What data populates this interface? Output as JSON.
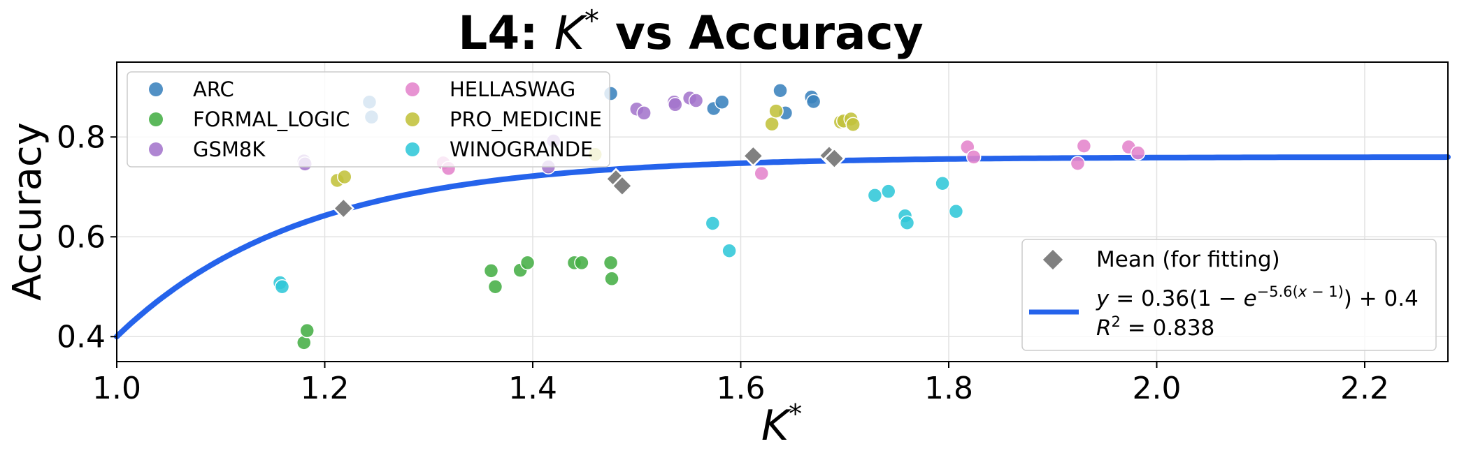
{
  "chart_data": {
    "type": "scatter",
    "title": {
      "prefix": "L4: ",
      "var": "K",
      "sup": "*",
      "suffix": " vs Accuracy"
    },
    "xlabel": {
      "var": "K",
      "sup": "*"
    },
    "ylabel": "Accuracy",
    "xlim": [
      1.0,
      2.28
    ],
    "ylim": [
      0.35,
      0.95
    ],
    "xticks": [
      1.0,
      1.2,
      1.4,
      1.6,
      1.8,
      2.0,
      2.2
    ],
    "xtick_labels": [
      "1.0",
      "1.2",
      "1.4",
      "1.6",
      "1.8",
      "2.0",
      "2.2"
    ],
    "yticks": [
      0.4,
      0.6,
      0.8
    ],
    "ytick_labels": [
      "0.4",
      "0.6",
      "0.8"
    ],
    "grid": true,
    "series": [
      {
        "name": "ARC",
        "color": "#3a82bd",
        "points": [
          [
            1.243,
            0.87
          ],
          [
            1.245,
            0.84
          ],
          [
            1.475,
            0.887
          ],
          [
            1.574,
            0.857
          ],
          [
            1.582,
            0.87
          ],
          [
            1.638,
            0.893
          ],
          [
            1.643,
            0.848
          ],
          [
            1.668,
            0.88
          ],
          [
            1.67,
            0.871
          ]
        ]
      },
      {
        "name": "FORMAL_LOGIC",
        "color": "#45ae45",
        "points": [
          [
            1.18,
            0.388
          ],
          [
            1.183,
            0.412
          ],
          [
            1.36,
            0.532
          ],
          [
            1.364,
            0.5
          ],
          [
            1.388,
            0.533
          ],
          [
            1.395,
            0.548
          ],
          [
            1.44,
            0.548
          ],
          [
            1.447,
            0.548
          ],
          [
            1.475,
            0.548
          ],
          [
            1.476,
            0.516
          ]
        ]
      },
      {
        "name": "GSM8K",
        "color": "#a475cc",
        "points": [
          [
            1.18,
            0.752
          ],
          [
            1.181,
            0.746
          ],
          [
            1.415,
            0.74
          ],
          [
            1.42,
            0.792
          ],
          [
            1.5,
            0.856
          ],
          [
            1.507,
            0.848
          ],
          [
            1.536,
            0.87
          ],
          [
            1.537,
            0.865
          ],
          [
            1.551,
            0.878
          ],
          [
            1.557,
            0.873
          ]
        ]
      },
      {
        "name": "HELLASWAG",
        "color": "#e484cc",
        "points": [
          [
            1.314,
            0.748
          ],
          [
            1.319,
            0.737
          ],
          [
            1.62,
            0.727
          ],
          [
            1.818,
            0.78
          ],
          [
            1.824,
            0.76
          ],
          [
            1.924,
            0.747
          ],
          [
            1.93,
            0.782
          ],
          [
            1.973,
            0.78
          ],
          [
            1.982,
            0.768
          ]
        ]
      },
      {
        "name": "PRO_MEDICINE",
        "color": "#c2c23b",
        "points": [
          [
            1.212,
            0.713
          ],
          [
            1.219,
            0.72
          ],
          [
            1.46,
            0.765
          ],
          [
            1.63,
            0.826
          ],
          [
            1.634,
            0.852
          ],
          [
            1.696,
            0.83
          ],
          [
            1.699,
            0.832
          ],
          [
            1.706,
            0.836
          ],
          [
            1.708,
            0.825
          ]
        ]
      },
      {
        "name": "WINOGRANDE",
        "color": "#30c7d8",
        "points": [
          [
            1.157,
            0.508
          ],
          [
            1.159,
            0.5
          ],
          [
            1.573,
            0.627
          ],
          [
            1.589,
            0.572
          ],
          [
            1.729,
            0.683
          ],
          [
            1.742,
            0.691
          ],
          [
            1.758,
            0.642
          ],
          [
            1.76,
            0.628
          ],
          [
            1.794,
            0.707
          ],
          [
            1.807,
            0.651
          ]
        ]
      }
    ],
    "means": {
      "name": "Mean (for fitting)",
      "color": "#808080",
      "points": [
        [
          1.218,
          0.657
        ],
        [
          1.48,
          0.716
        ],
        [
          1.486,
          0.702
        ],
        [
          1.612,
          0.762
        ],
        [
          1.685,
          0.763
        ],
        [
          1.69,
          0.757
        ]
      ]
    },
    "fit": {
      "a": 0.36,
      "b": 5.6,
      "c": 0.4,
      "x0": 1.0,
      "color": "#2563eb",
      "label": "y = 0.36(1 − e−5.6(x − 1)) + 0.4",
      "r2_label": "R2 = 0.838"
    },
    "legend_series_placement": "upper-left",
    "legend_fit_placement": "lower-right"
  }
}
